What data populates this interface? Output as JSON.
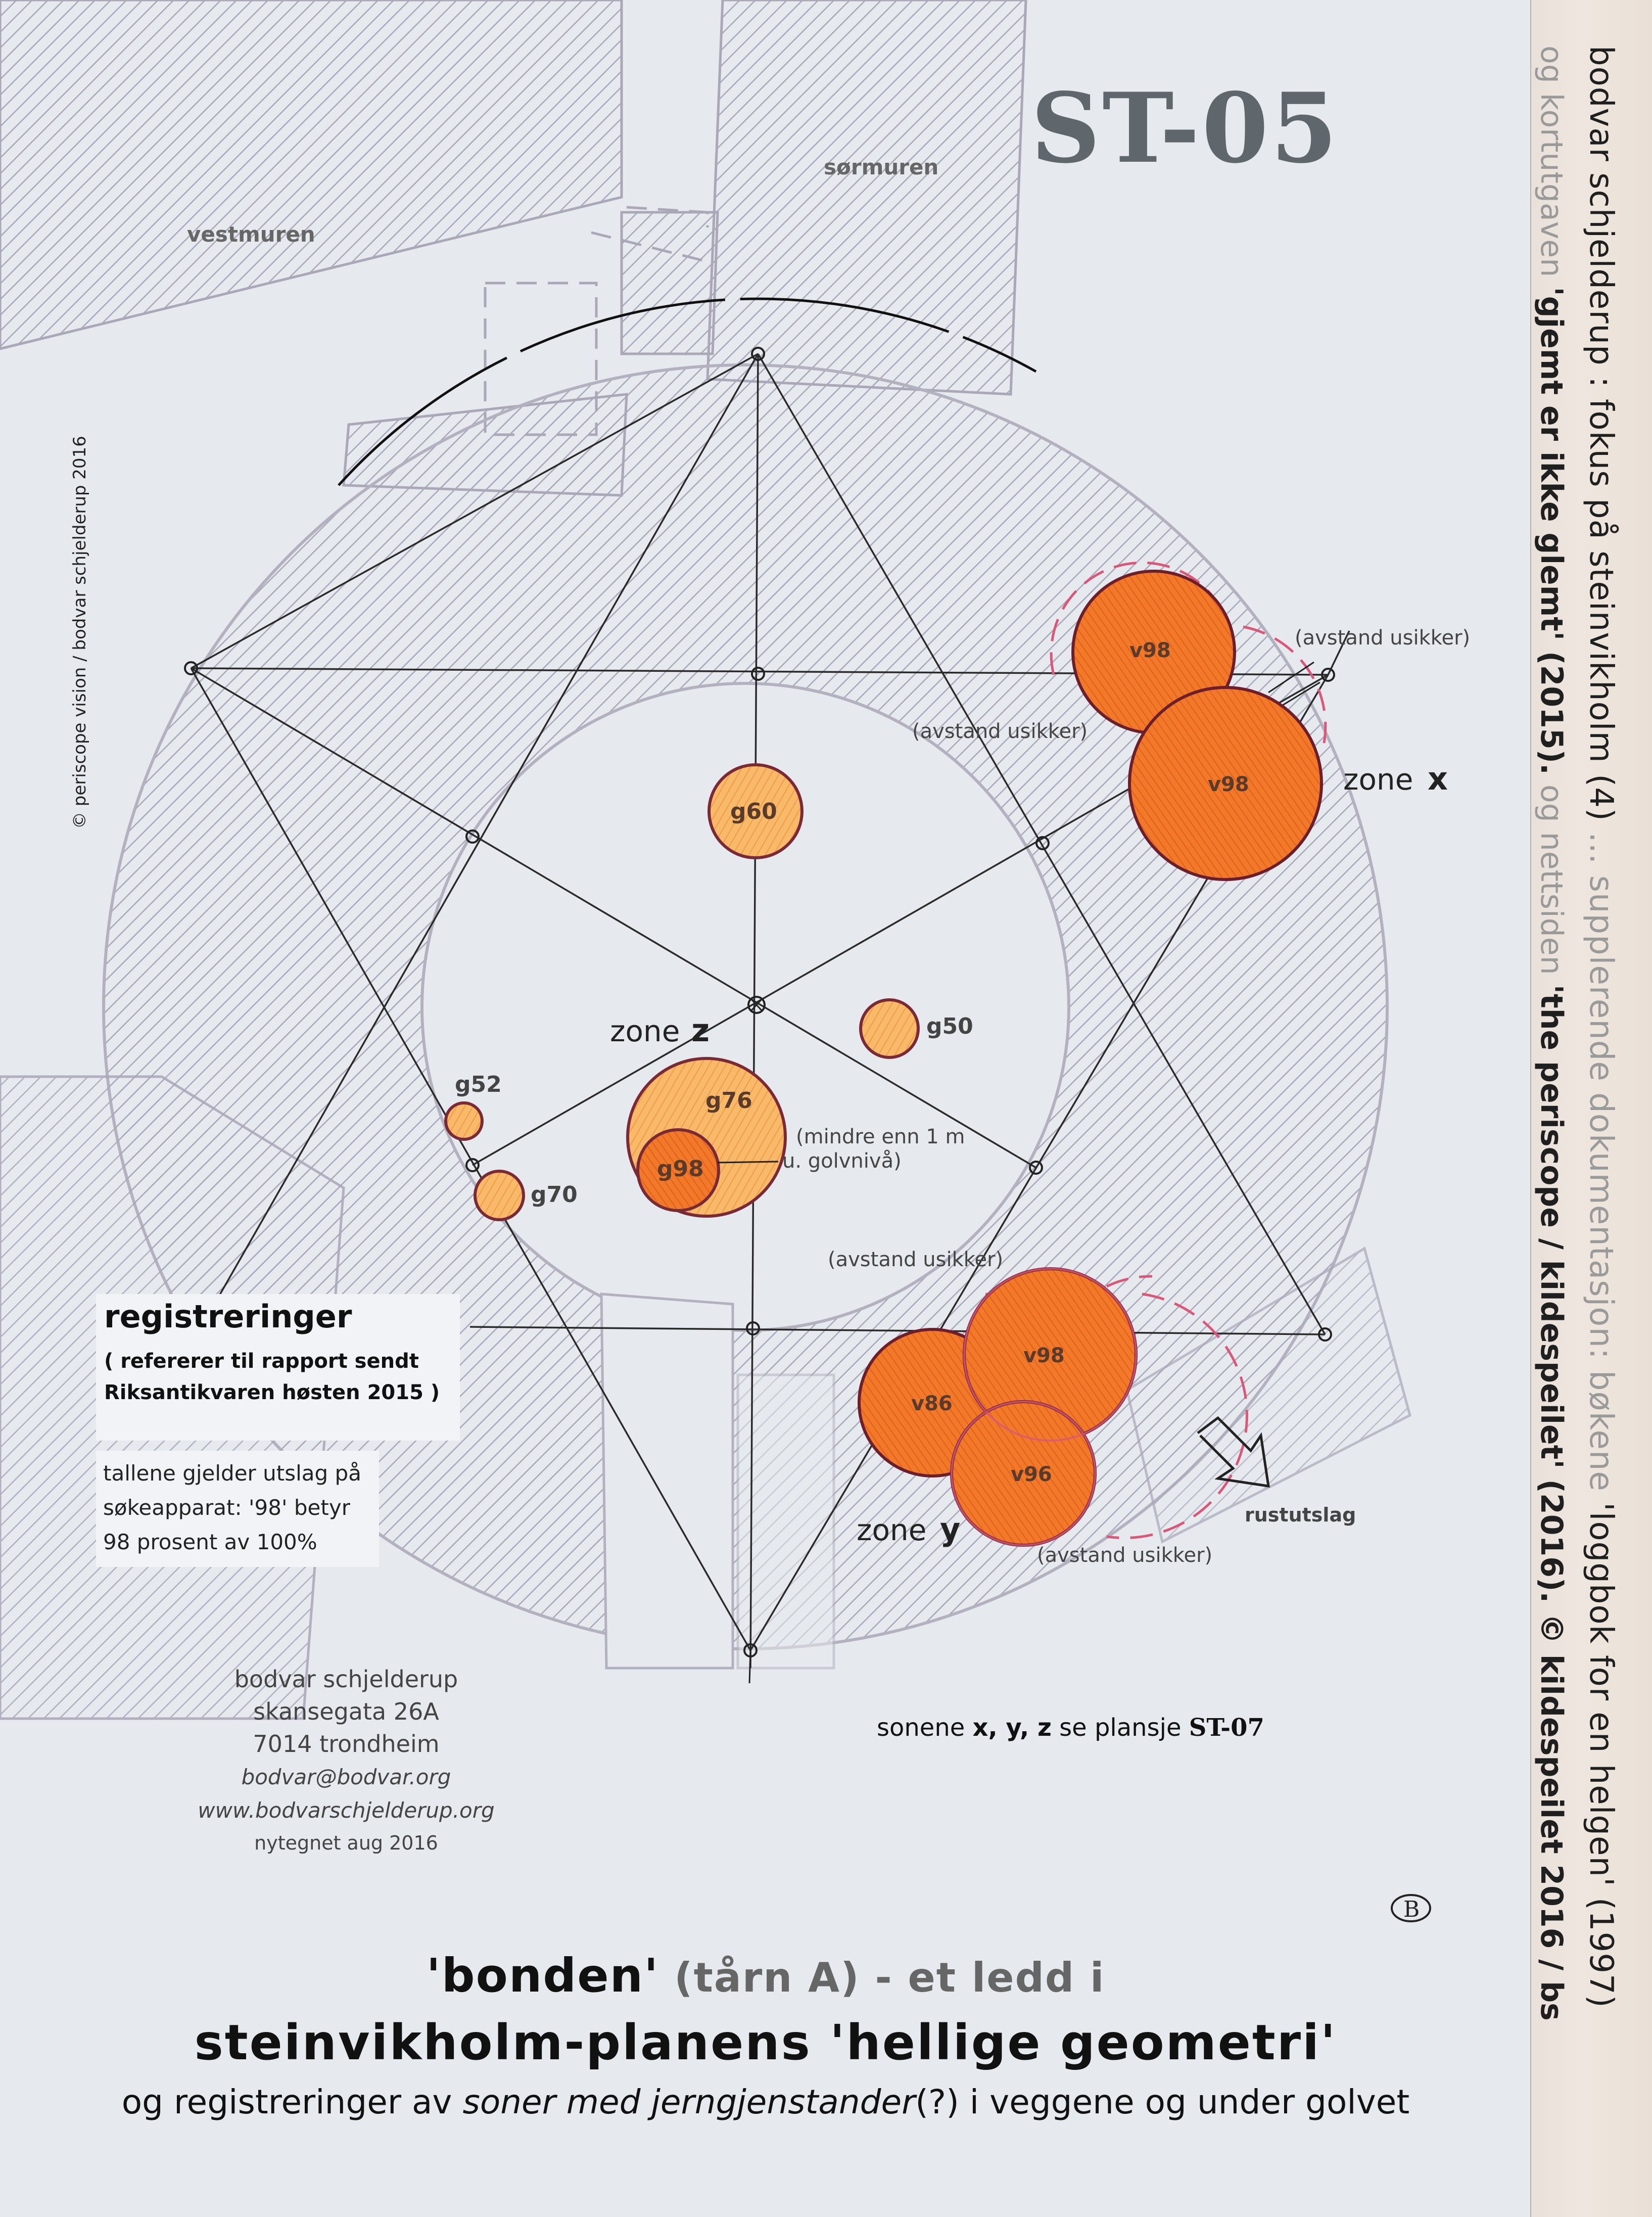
{
  "sheet_id": "ST-05",
  "walls": {
    "west": "vestmuren",
    "south": "sørmuren"
  },
  "copyright_vertical": "©  periscope vision / bodvar schjelderup 2016",
  "side_banner": {
    "line1_a": "bodvar schjelderup :  fokus på steinvikholm (4) ",
    "line1_b": "... supplerende dokumentasjon: bøkene ",
    "line1_c": "'loggbok for en helgen' (1997)",
    "line2_a": "og kortutgaven ",
    "line2_b": "'gjemt er ikke glemt' (2015).",
    "line2_c": "  og nettsiden ",
    "line2_d": "'the periscope / kildespeilet' (2016).",
    "line2_e": "   © kildespeilet 2016 / bs"
  },
  "finds": [
    {
      "label": "v98",
      "zone": "x",
      "value": 98
    },
    {
      "label": "v98",
      "zone": "x",
      "value": 98
    },
    {
      "label": "g60",
      "zone": "z",
      "value": 60
    },
    {
      "label": "g50",
      "zone": "z",
      "value": 50
    },
    {
      "label": "g52",
      "zone": "",
      "value": 52
    },
    {
      "label": "g70",
      "zone": "",
      "value": 70
    },
    {
      "label": "g76",
      "zone": "z",
      "value": 76
    },
    {
      "label": "g98",
      "zone": "z",
      "value": 98
    },
    {
      "label": "v98",
      "zone": "y",
      "value": 98
    },
    {
      "label": "v86",
      "zone": "y",
      "value": 86
    },
    {
      "label": "v96",
      "zone": "y",
      "value": 96
    }
  ],
  "annotations": {
    "uncertain1": "(avstand usikker)",
    "uncertain2": "(avstand usikker)",
    "uncertain3": "(avstand usikker)",
    "uncertain4": "(avstand usikker)",
    "below_floor1": "(mindre enn 1 m",
    "below_floor2": "u. golvnivå)",
    "rust": "rustutslag"
  },
  "zones": {
    "x_pre": "zone",
    "x": "x",
    "y_pre": "zone",
    "y": "y",
    "z_pre": "zone",
    "z": "z"
  },
  "registrations": {
    "heading": "registreringer",
    "ref1": "( refererer til rapport sendt",
    "ref2": "Riksantikvaren høsten 2015 )",
    "note1": "tallene gjelder utslag på",
    "note2": "søkeapparat:  '98' betyr",
    "note3": "98 prosent av 100%"
  },
  "address": {
    "name": "bodvar schjelderup",
    "street": "skansegata 26A",
    "city": "7014 trondheim",
    "email": "bodvar@bodvar.org",
    "web": "www.bodvarschjelderup.org",
    "date": "nytegnet aug 2016"
  },
  "zones_ref": {
    "a": "sonene ",
    "b": "x, y, z",
    "c": " se plansje ",
    "d": "ST-07"
  },
  "mark": "B",
  "title": {
    "line1_a": "'bonden'",
    "line1_b": " (tårn A) - et ledd i",
    "line2": "steinvikholm-planens 'hellige geometri'",
    "line3_a": "og registreringer av ",
    "line3_b": "soner med jerngjenstander",
    "line3_c": "(?) i veggene og under golvet"
  },
  "colors": {
    "orange_light": "#f7b96a",
    "orange_dark": "#f07a2a",
    "outline": "#8a2b3a",
    "hatch": "#a9a7b8"
  }
}
